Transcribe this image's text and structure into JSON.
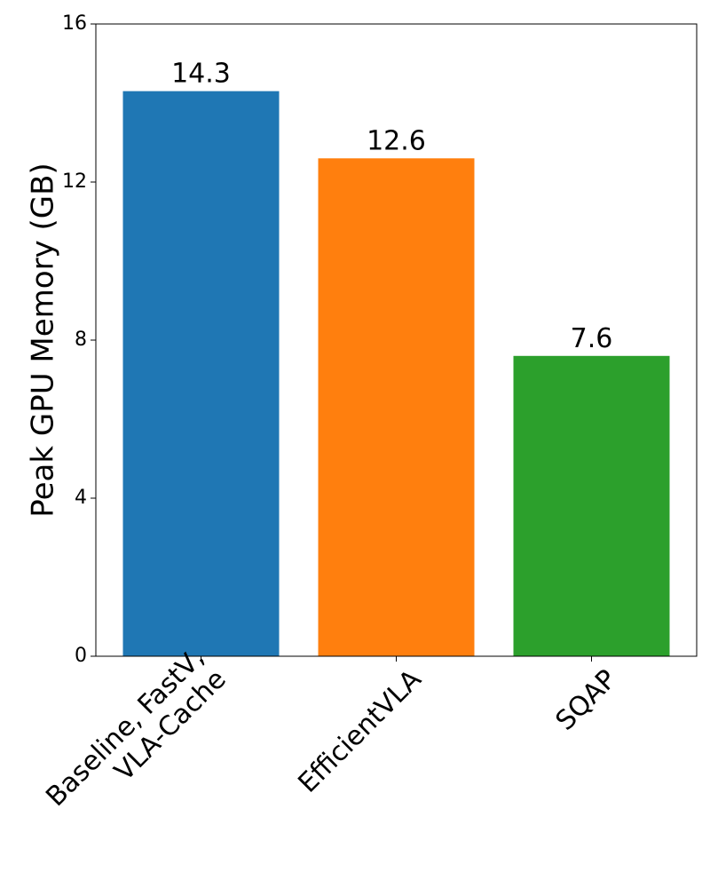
{
  "chart_data": {
    "type": "bar",
    "ylabel": "Peak GPU Memory (GB)",
    "categories": [
      "Baseline, FastV,\nVLA-Cache",
      "EfficientVLA",
      "SQAP"
    ],
    "values": [
      14.3,
      12.6,
      7.6
    ],
    "colors": [
      "#1f77b4",
      "#ff7f0e",
      "#2ca02c"
    ],
    "ylim": [
      0,
      16
    ],
    "yticks": [
      0,
      4,
      8,
      12,
      16
    ],
    "grid": false
  }
}
